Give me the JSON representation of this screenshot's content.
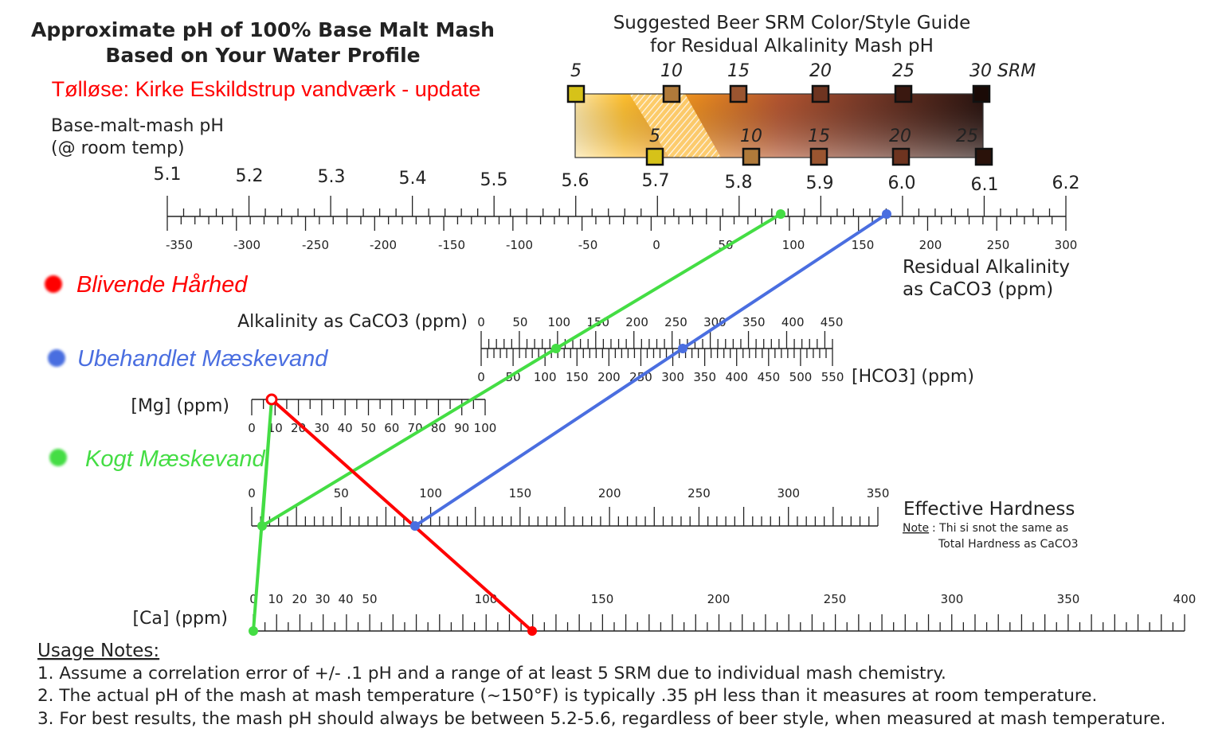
{
  "title": {
    "line1": "Approximate pH of 100% Base Malt Mash",
    "line2": "Based on Your Water Profile",
    "location": "Tølløse: Kirke Eskildstrup vandværk - update"
  },
  "srm_guide": {
    "title1": "Suggested Beer SRM Color/Style Guide",
    "title2": "for Residual Alkalinity Mash pH",
    "top_labels": [
      "5",
      "10",
      "15",
      "20",
      "25",
      "30 SRM"
    ],
    "bottom_labels": [
      "5",
      "10",
      "15",
      "20",
      "25"
    ],
    "top_colors": [
      "#d6c219",
      "#b07a3a",
      "#9a5530",
      "#6e3420",
      "#3a1810",
      "#1a0a06"
    ],
    "bottom_colors": [
      "#d6c219",
      "#b07a3a",
      "#9a5530",
      "#6e3420",
      "#2a120a"
    ]
  },
  "ph_scale": {
    "label1": "Base-malt-mash pH",
    "label2": "(@ room temp)",
    "ticks": [
      "5.1",
      "5.2",
      "5.3",
      "5.4",
      "5.5",
      "5.6",
      "5.7",
      "5.8",
      "5.9",
      "6.0",
      "6.1",
      "6.2"
    ]
  },
  "ra_scale": {
    "label1": "Residual Alkalinity",
    "label2": "as CaCO3 (ppm)",
    "ticks": [
      "-350",
      "-300",
      "-250",
      "-200",
      "-150",
      "-100",
      "-50",
      "0",
      "50",
      "100",
      "150",
      "200",
      "250",
      "300"
    ]
  },
  "alk_scale": {
    "label": "Alkalinity as CaCO3 (ppm)",
    "ticks": [
      "0",
      "50",
      "100",
      "150",
      "200",
      "250",
      "300",
      "350",
      "400",
      "450"
    ],
    "hco3_label": "[HCO3] (ppm)",
    "hco3_ticks": [
      "0",
      "50",
      "100",
      "150",
      "200",
      "250",
      "300",
      "350",
      "400",
      "450",
      "500",
      "550"
    ]
  },
  "mg_scale": {
    "label": "[Mg] (ppm)",
    "ticks": [
      "0",
      "10",
      "20",
      "30",
      "40",
      "50",
      "60",
      "70",
      "80",
      "90",
      "100"
    ]
  },
  "hardness_scale": {
    "label": "Effective Hardness",
    "note_prefix": "Note",
    "note_line1": ": Thi si snot the same as",
    "note_line2": "Total Hardness as CaCO3",
    "ticks": [
      "0",
      "50",
      "100",
      "150",
      "200",
      "250",
      "300",
      "350"
    ]
  },
  "ca_scale": {
    "label": "[Ca] (ppm)",
    "ticks": [
      "0",
      "10",
      "20",
      "30",
      "40",
      "50",
      "100",
      "150",
      "200",
      "250",
      "300",
      "350",
      "400"
    ]
  },
  "legend": [
    {
      "label": "Blivende Hårhed",
      "color": "#ff0000"
    },
    {
      "label": "Ubehandlet Mæskevand",
      "color": "#4a6ee0"
    },
    {
      "label": "Kogt Mæskevand",
      "color": "#44dd44"
    }
  ],
  "usage": {
    "title": "Usage Notes:",
    "notes": [
      "1. Assume a correlation error of +/- .1 pH and a range of at least 5 SRM due to individual mash chemistry.",
      "2. The actual pH of the mash at mash temperature (~150°F) is typically .35 pH less than it measures at room temperature.",
      "3. For best results, the mash pH should always be between 5.2-5.6, regardless of beer style, when measured at mash temperature."
    ]
  },
  "colors": {
    "red": "#ff0000",
    "blue": "#4a6ee0",
    "green": "#44dd44"
  }
}
